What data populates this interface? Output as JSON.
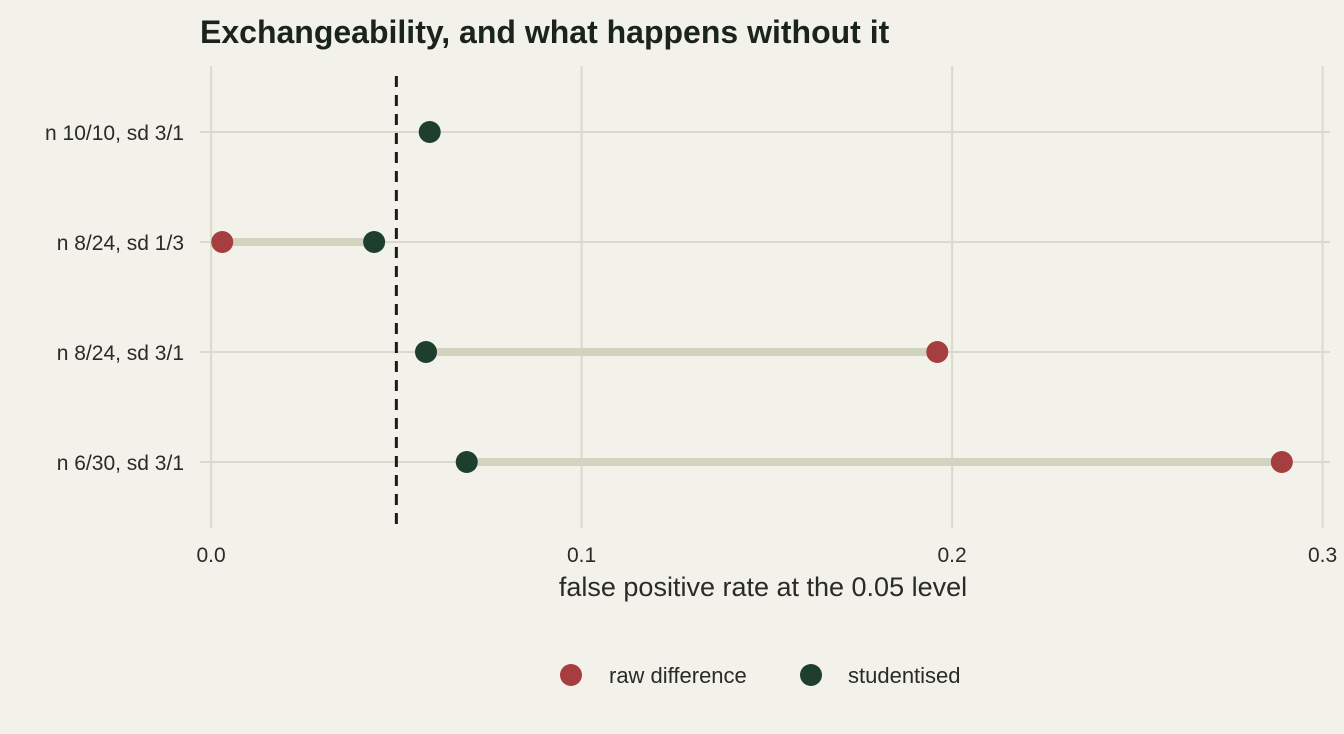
{
  "chart_data": {
    "type": "dumbbell",
    "title": "Exchangeability, and what happens without it",
    "xlabel": "false positive rate at the 0.05 level",
    "ylabel": "",
    "xlim": [
      -0.003,
      0.302
    ],
    "x_ticks": [
      0.0,
      0.1,
      0.2,
      0.3
    ],
    "x_tick_labels": [
      "0.0",
      "0.1",
      "0.2",
      "0.3"
    ],
    "reference_line": 0.05,
    "grid": true,
    "legend_position": "bottom",
    "categories": [
      "n 10/10, sd 3/1",
      "n 8/24, sd 1/3",
      "n 8/24, sd 3/1",
      "n 6/30, sd 3/1"
    ],
    "series": [
      {
        "name": "raw difference",
        "color": "#a63d3f",
        "values": [
          null,
          0.003,
          0.196,
          0.289
        ]
      },
      {
        "name": "studentised",
        "color": "#1f3f2e",
        "values": [
          0.059,
          0.044,
          0.058,
          0.069
        ]
      }
    ],
    "segment_color": "#d3d4c0",
    "grid_color": "#d9dacb",
    "background": "#f2f1ea"
  }
}
